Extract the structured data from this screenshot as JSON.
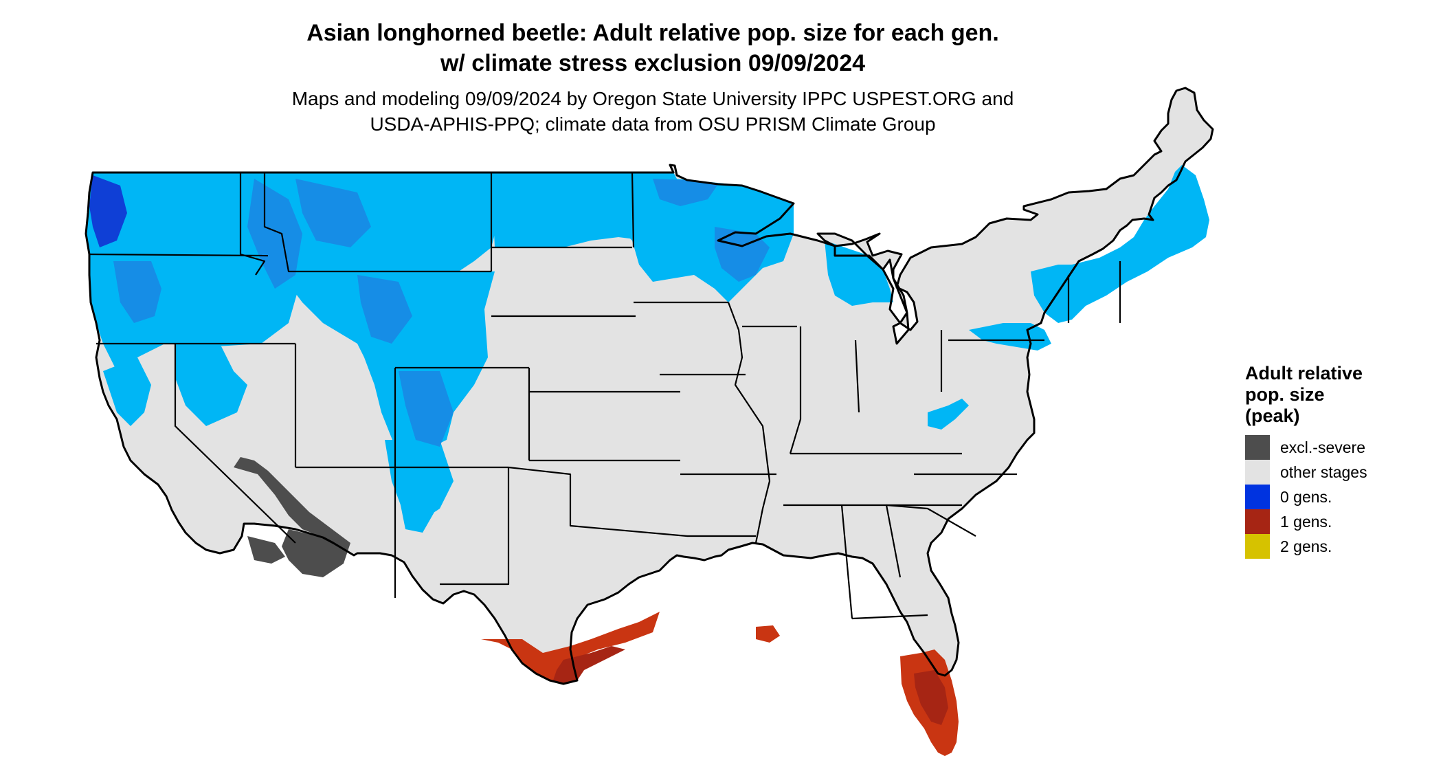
{
  "title": {
    "line1": "Asian longhorned beetle: Adult relative pop. size for each gen.",
    "line2": "w/ climate stress exclusion 09/09/2024"
  },
  "subtitle": {
    "line1": "Maps and modeling 09/09/2024 by Oregon State University IPPC USPEST.ORG and",
    "line2": "USDA-APHIS-PPQ; climate data from OSU PRISM Climate Group"
  },
  "legend": {
    "title_lines": [
      "Adult relative",
      "pop. size",
      "(peak)"
    ],
    "items": [
      {
        "label": "excl.-severe",
        "color": "#4d4d4d"
      },
      {
        "label": "other stages",
        "color": "#e3e3e3"
      },
      {
        "label": "0 gens.",
        "color": "#0033e0"
      },
      {
        "label": "1 gens.",
        "color": "#a62514"
      },
      {
        "label": "2 gens.",
        "color": "#d6c200"
      }
    ]
  },
  "map_colors": {
    "land": "#e3e3e3",
    "cold_light": "#00b6f5",
    "cold_mid": "#168de6",
    "cold_dark": "#0f3fd6",
    "excluded": "#4d4d4d",
    "one_gen": "#c93512",
    "one_gen_dark": "#a62514",
    "border": "#000000"
  }
}
